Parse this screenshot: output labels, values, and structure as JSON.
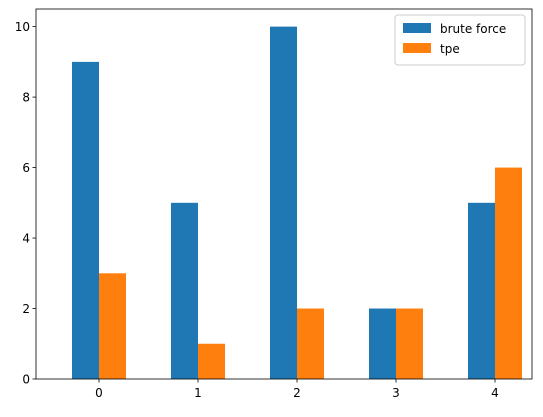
{
  "chart_data": {
    "type": "bar",
    "categories": [
      "0",
      "1",
      "2",
      "3",
      "4"
    ],
    "series": [
      {
        "name": "brute force",
        "values": [
          9,
          5,
          10,
          2,
          5
        ],
        "color": "#1f77b4"
      },
      {
        "name": "tpe",
        "values": [
          3,
          1,
          2,
          2,
          6
        ],
        "color": "#ff7f0e"
      }
    ],
    "yticks": [
      0,
      2,
      4,
      6,
      8,
      10
    ],
    "ylim": [
      0,
      10.5
    ],
    "grid": false,
    "legend_position": "top-right"
  }
}
